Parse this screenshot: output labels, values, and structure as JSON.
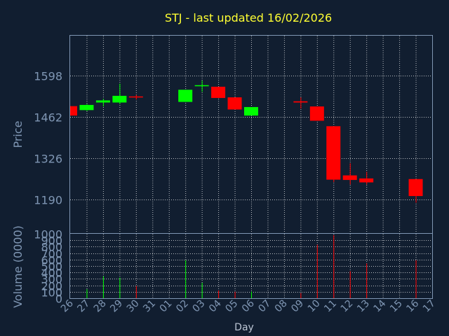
{
  "chart_data": {
    "type": "candlestick",
    "title": "STJ - last updated 16/02/2026",
    "ylabel_price": "Price",
    "ylabel_volume": "Volume (0000)",
    "xlabel": "Day",
    "price_ticks": [
      "1598",
      "1462",
      "1326",
      "1190"
    ],
    "volume_ticks": [
      "1000",
      "900",
      "800",
      "700",
      "600",
      "500",
      "400",
      "300",
      "200",
      "100",
      "0"
    ],
    "price_range": [
      1080,
      1730
    ],
    "volume_range": [
      0,
      1000
    ],
    "grid": true,
    "colors": {
      "up": "#00ff00",
      "down": "#ff0000",
      "background": "#111e30",
      "grid": "#ffffff",
      "axis": "#7f96b3",
      "title": "#ffff33"
    },
    "days": [
      "26",
      "27",
      "28",
      "29",
      "30",
      "31",
      "01",
      "02",
      "03",
      "04",
      "05",
      "06",
      "07",
      "08",
      "09",
      "10",
      "11",
      "12",
      "13",
      "14",
      "15",
      "16",
      "17"
    ],
    "candles": [
      {
        "day": "26",
        "open": 1498,
        "close": 1467,
        "high": 1498,
        "low": 1467,
        "volume": 0
      },
      {
        "day": "27",
        "open": 1485,
        "close": 1502,
        "high": 1505,
        "low": 1482,
        "volume": 140
      },
      {
        "day": "28",
        "open": 1510,
        "close": 1517,
        "high": 1522,
        "low": 1497,
        "volume": 340
      },
      {
        "day": "29",
        "open": 1510,
        "close": 1532,
        "high": 1572,
        "low": 1505,
        "volume": 320
      },
      {
        "day": "30",
        "open": 1530,
        "close": 1527,
        "high": 1535,
        "low": 1520,
        "volume": 190
      },
      {
        "day": "02",
        "open": 1512,
        "close": 1552,
        "high": 1552,
        "low": 1512,
        "volume": 590
      },
      {
        "day": "03",
        "open": 1564,
        "close": 1567,
        "high": 1582,
        "low": 1545,
        "volume": 240
      },
      {
        "day": "04",
        "open": 1562,
        "close": 1525,
        "high": 1562,
        "low": 1525,
        "volume": 120
      },
      {
        "day": "05",
        "open": 1527,
        "close": 1487,
        "high": 1527,
        "low": 1487,
        "volume": 100
      },
      {
        "day": "06",
        "open": 1467,
        "close": 1495,
        "high": 1495,
        "low": 1467,
        "volume": 100
      },
      {
        "day": "09",
        "open": 1514,
        "close": 1510,
        "high": 1527,
        "low": 1490,
        "volume": 80
      },
      {
        "day": "10",
        "open": 1497,
        "close": 1450,
        "high": 1497,
        "low": 1450,
        "volume": 830
      },
      {
        "day": "11",
        "open": 1432,
        "close": 1256,
        "high": 1432,
        "low": 1248,
        "volume": 980
      },
      {
        "day": "12",
        "open": 1270,
        "close": 1255,
        "high": 1310,
        "low": 1240,
        "volume": 420
      },
      {
        "day": "13",
        "open": 1260,
        "close": 1247,
        "high": 1282,
        "low": 1240,
        "volume": 540
      },
      {
        "day": "16",
        "open": 1258,
        "close": 1202,
        "high": 1258,
        "low": 1180,
        "volume": 590
      }
    ]
  }
}
